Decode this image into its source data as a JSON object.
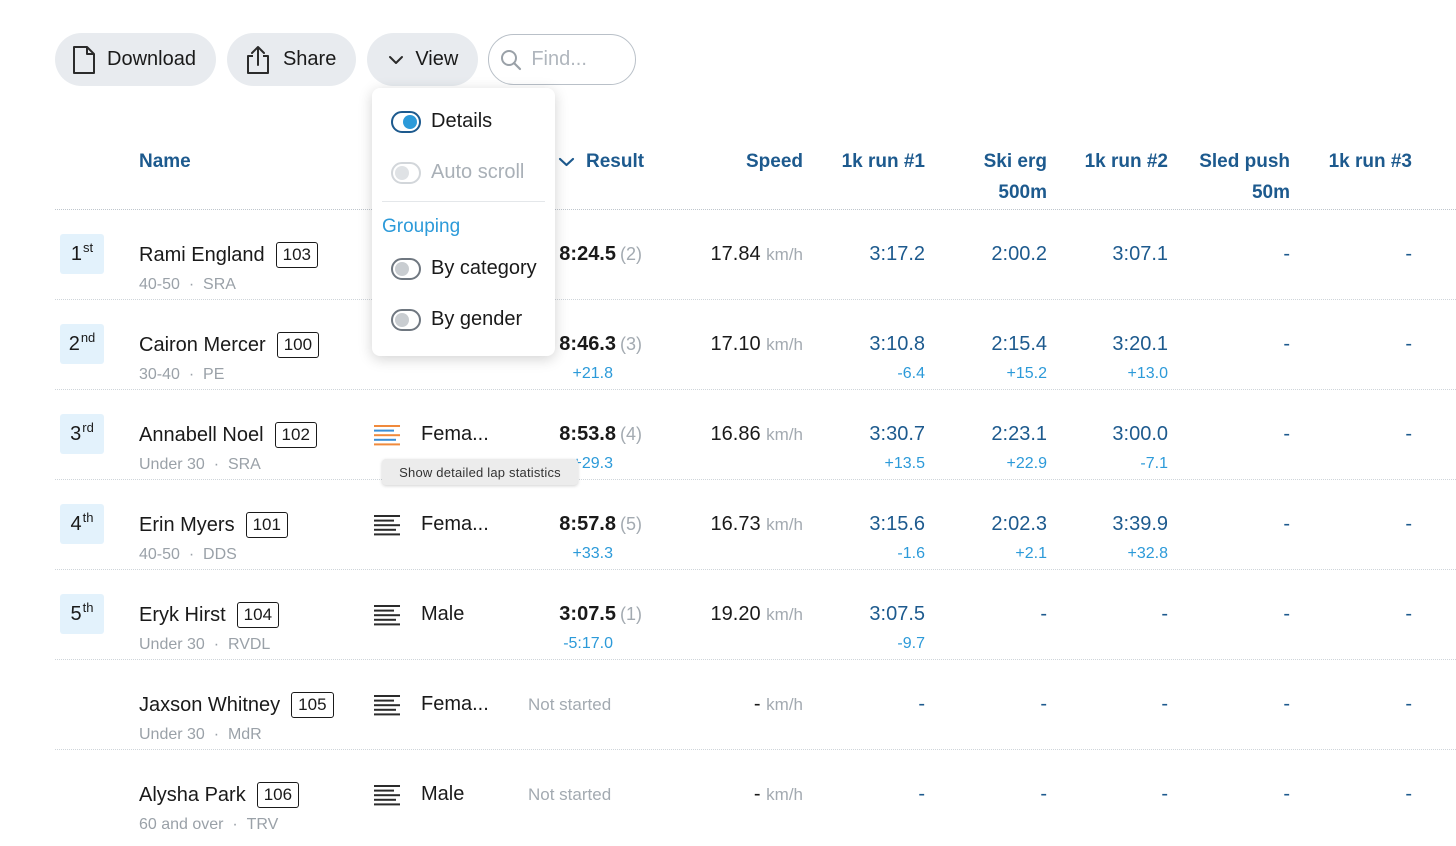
{
  "toolbar": {
    "download_label": "Download",
    "share_label": "Share",
    "view_label": "View",
    "find_placeholder": "Find..."
  },
  "columns": {
    "name": "Name",
    "result": "Result",
    "speed": "Speed",
    "split1": "1k run #1",
    "split2_line1": "Ski erg",
    "split2_line2": "500m",
    "split3": "1k run #2",
    "split4_line1": "Sled push",
    "split4_line2": "50m",
    "split5": "1k run #3"
  },
  "view_menu": {
    "details": "Details",
    "auto_scroll": "Auto scroll",
    "grouping_title": "Grouping",
    "by_category": "By category",
    "by_gender": "By gender"
  },
  "tooltip": "Show detailed lap statistics",
  "colors": {
    "header_blue": "#1d5a8e",
    "delta_blue": "#2c9ad9",
    "rank_bg": "#e3f2fc"
  },
  "rows": [
    {
      "rank": "1",
      "rank_suffix": "st",
      "name": "Rami England",
      "bib": "103",
      "category": "40-50",
      "club": "SRA",
      "gender": "",
      "result": "8:24.5",
      "result_pos": "(2)",
      "result_delta": "",
      "speed": "17.84",
      "speed_unit": "km/h",
      "splits": [
        "3:17.2",
        "2:00.2",
        "3:07.1",
        "-",
        "-"
      ],
      "deltas": [
        "",
        "",
        "",
        "",
        ""
      ]
    },
    {
      "rank": "2",
      "rank_suffix": "nd",
      "name": "Cairon Mercer",
      "bib": "100",
      "category": "30-40",
      "club": "PE",
      "gender": "",
      "result": "8:46.3",
      "result_pos": "(3)",
      "result_delta": "+21.8",
      "speed": "17.10",
      "speed_unit": "km/h",
      "splits": [
        "3:10.8",
        "2:15.4",
        "3:20.1",
        "-",
        "-"
      ],
      "deltas": [
        "-6.4",
        "+15.2",
        "+13.0",
        "",
        ""
      ]
    },
    {
      "rank": "3",
      "rank_suffix": "rd",
      "name": "Annabell Noel",
      "bib": "102",
      "category": "Under 30",
      "club": "SRA",
      "gender": "Fema...",
      "result": "8:53.8",
      "result_pos": "(4)",
      "result_delta": "+29.3",
      "speed": "16.86",
      "speed_unit": "km/h",
      "splits": [
        "3:30.7",
        "2:23.1",
        "3:00.0",
        "-",
        "-"
      ],
      "deltas": [
        "+13.5",
        "+22.9",
        "-7.1",
        "",
        ""
      ]
    },
    {
      "rank": "4",
      "rank_suffix": "th",
      "name": "Erin Myers",
      "bib": "101",
      "category": "40-50",
      "club": "DDS",
      "gender": "Fema...",
      "result": "8:57.8",
      "result_pos": "(5)",
      "result_delta": "+33.3",
      "speed": "16.73",
      "speed_unit": "km/h",
      "splits": [
        "3:15.6",
        "2:02.3",
        "3:39.9",
        "-",
        "-"
      ],
      "deltas": [
        "-1.6",
        "+2.1",
        "+32.8",
        "",
        ""
      ]
    },
    {
      "rank": "5",
      "rank_suffix": "th",
      "name": "Eryk Hirst",
      "bib": "104",
      "category": "Under 30",
      "club": "RVDL",
      "gender": "Male",
      "result": "3:07.5",
      "result_pos": "(1)",
      "result_delta": "-5:17.0",
      "speed": "19.20",
      "speed_unit": "km/h",
      "splits": [
        "3:07.5",
        "-",
        "-",
        "-",
        "-"
      ],
      "deltas": [
        "-9.7",
        "",
        "",
        "",
        ""
      ]
    },
    {
      "rank": "",
      "rank_suffix": "",
      "name": "Jaxson Whitney",
      "bib": "105",
      "category": "Under 30",
      "club": "MdR",
      "gender": "Fema...",
      "status": "Not started",
      "speed": "-",
      "speed_unit": "km/h",
      "splits": [
        "-",
        "-",
        "-",
        "-",
        "-"
      ],
      "deltas": [
        "",
        "",
        "",
        "",
        ""
      ]
    },
    {
      "rank": "",
      "rank_suffix": "",
      "name": "Alysha Park",
      "bib": "106",
      "category": "60 and over",
      "club": "TRV",
      "gender": "Male",
      "status": "Not started",
      "speed": "-",
      "speed_unit": "km/h",
      "splits": [
        "-",
        "-",
        "-",
        "-",
        "-"
      ],
      "deltas": [
        "",
        "",
        "",
        "",
        ""
      ]
    }
  ]
}
